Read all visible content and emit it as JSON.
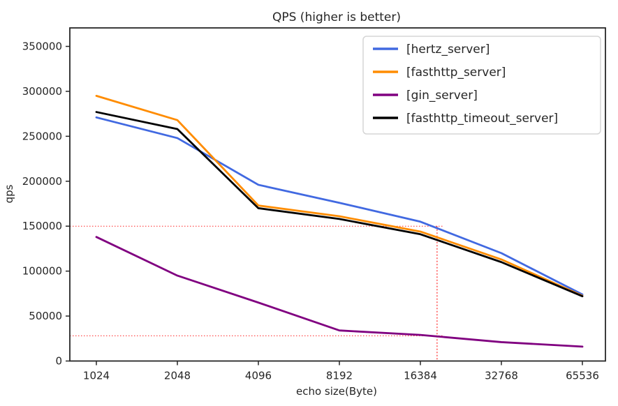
{
  "figure": {
    "title": "QPS (higher is better)",
    "xlabel": "echo size(Byte)",
    "ylabel": "qps"
  },
  "chart_data": {
    "type": "line",
    "title": "QPS (higher is better)",
    "xlabel": "echo size(Byte)",
    "ylabel": "qps",
    "x_scale": "log2",
    "x": [
      1024,
      2048,
      4096,
      8192,
      16384,
      32768,
      65536
    ],
    "x_tick_labels": [
      "1024",
      "2048",
      "4096",
      "8192",
      "16384",
      "32768",
      "65536"
    ],
    "y_ticks": [
      0,
      50000,
      100000,
      150000,
      200000,
      250000,
      300000,
      350000
    ],
    "ylim": [
      0,
      372000
    ],
    "grid": false,
    "legend_position": "upper right",
    "series": [
      {
        "name": "[hertz_server]",
        "color": "#4169E1",
        "values": [
          271000,
          248000,
          196000,
          176000,
          155000,
          120000,
          74000
        ]
      },
      {
        "name": "[fasthttp_server]",
        "color": "#FF8C00",
        "values": [
          295000,
          268000,
          173000,
          161000,
          144000,
          113000,
          72500
        ]
      },
      {
        "name": "[gin_server]",
        "color": "#800080",
        "values": [
          138000,
          95000,
          65000,
          34000,
          29000,
          21000,
          16000
        ]
      },
      {
        "name": "[fasthttp_timeout_server]",
        "color": "#000000",
        "values": [
          277000,
          258000,
          170000,
          158000,
          141000,
          110000,
          72000
        ]
      }
    ],
    "annotations": {
      "color": "#ff0000",
      "style": "dotted",
      "h_lines_qps": [
        150000,
        28000
      ],
      "v_line_byte": 18900
    }
  }
}
